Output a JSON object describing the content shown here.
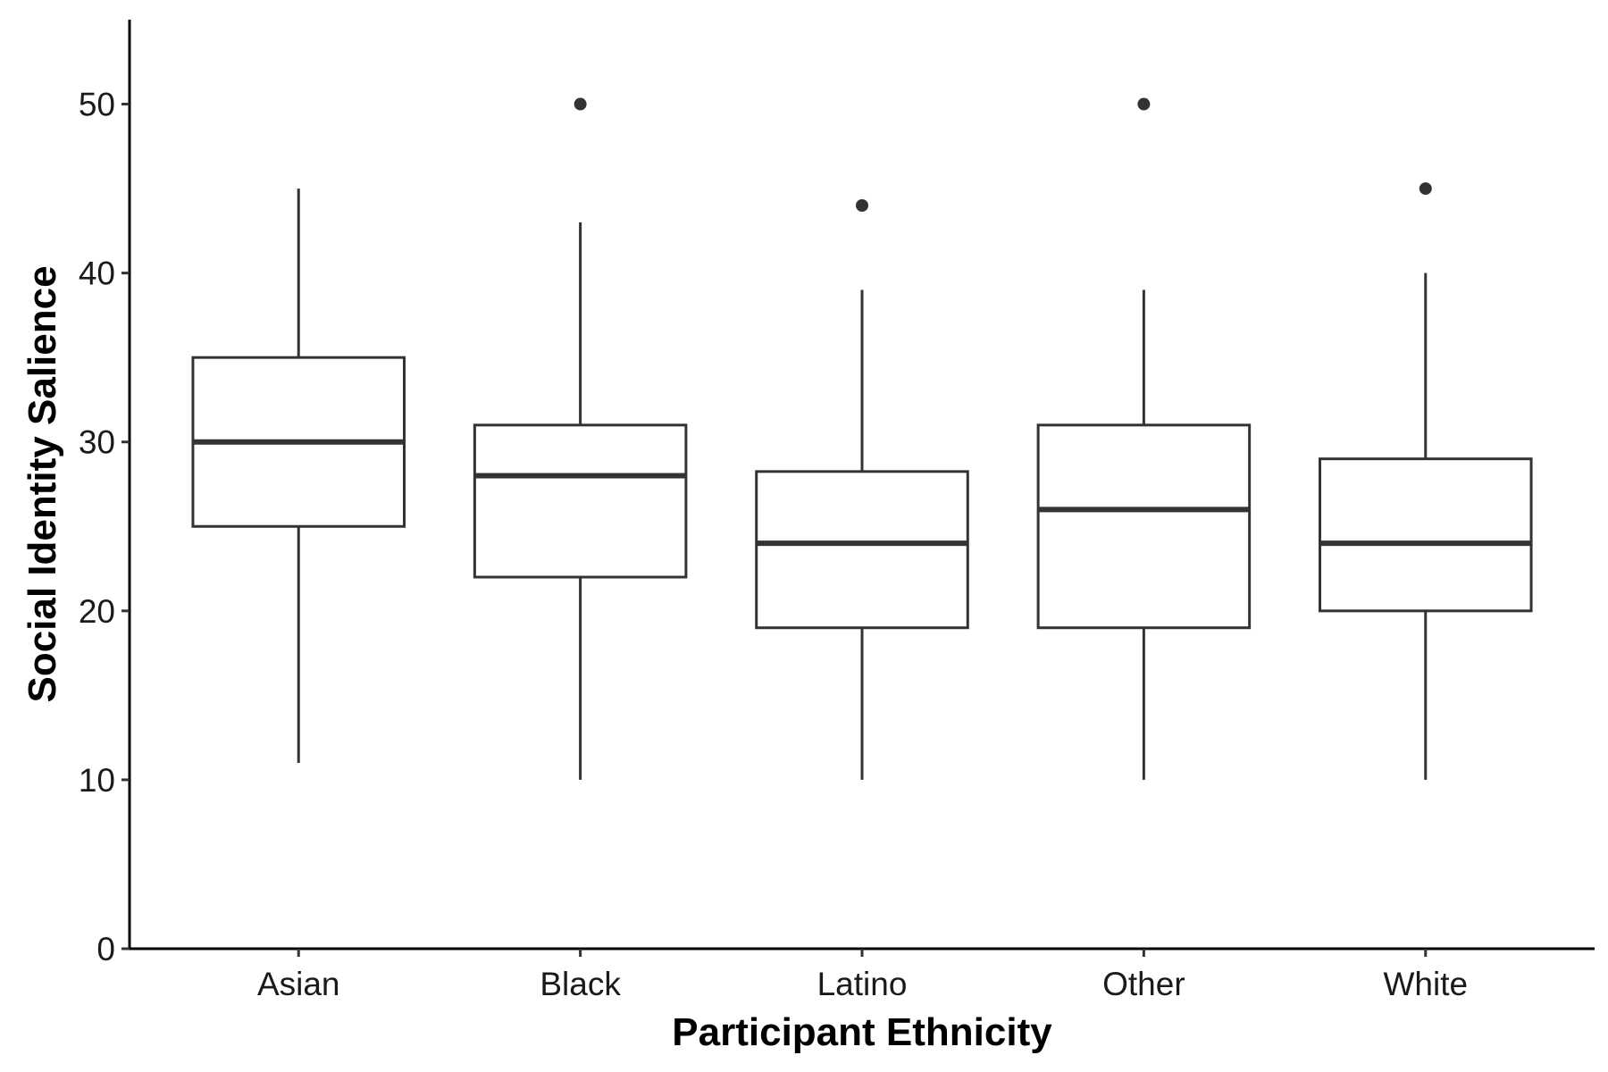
{
  "chart_data": {
    "type": "boxplot",
    "title": "",
    "xlabel": "Participant Ethnicity",
    "ylabel": "Social Identity Salience",
    "ylim": [
      0,
      55
    ],
    "yticks": [
      0,
      10,
      20,
      30,
      40,
      50
    ],
    "grid": false,
    "legend": "none",
    "categories": [
      "Asian",
      "Black",
      "Latino",
      "Other",
      "White"
    ],
    "boxes": [
      {
        "category": "Asian",
        "lower_whisker": 11,
        "q1": 25,
        "median": 30,
        "q3": 35,
        "upper_whisker": 45,
        "outliers": []
      },
      {
        "category": "Black",
        "lower_whisker": 10,
        "q1": 22,
        "median": 28,
        "q3": 31,
        "upper_whisker": 43,
        "outliers": [
          50
        ]
      },
      {
        "category": "Latino",
        "lower_whisker": 10,
        "q1": 19,
        "median": 24,
        "q3": 28.25,
        "upper_whisker": 39,
        "outliers": [
          44
        ]
      },
      {
        "category": "Other",
        "lower_whisker": 10,
        "q1": 19,
        "median": 26,
        "q3": 31,
        "upper_whisker": 39,
        "outliers": [
          50
        ]
      },
      {
        "category": "White",
        "lower_whisker": 10,
        "q1": 20,
        "median": 24,
        "q3": 29,
        "upper_whisker": 40,
        "outliers": [
          45
        ]
      }
    ],
    "colors": {
      "box_stroke": "#333333",
      "box_fill": "#ffffff",
      "axis": "#000000",
      "outlier": "#333333"
    }
  }
}
